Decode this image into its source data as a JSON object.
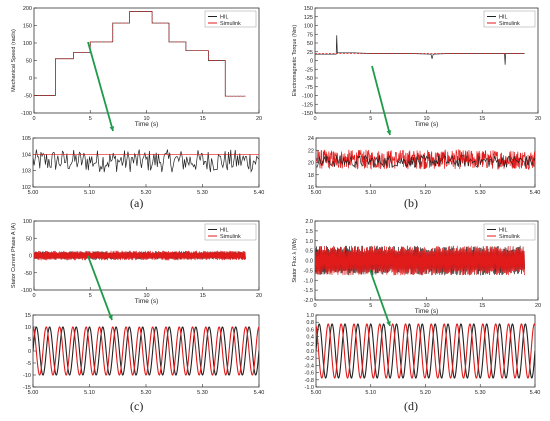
{
  "colors": {
    "hil": "#222222",
    "simulink": "#e11a1a",
    "axis": "#333333",
    "grid": "#dddddd",
    "arrow": "#1f9a4a"
  },
  "chart_data": [
    {
      "id": "a",
      "panel_label": "(a)",
      "type": "line",
      "main": {
        "xlabel": "Time (s)",
        "ylabel": "Mechanical Speed (rad/s)",
        "xlim": [
          0,
          20
        ],
        "ylim": [
          -100,
          200
        ],
        "xticks": [
          0,
          5,
          10,
          15,
          20
        ],
        "yticks": [
          -100,
          -50,
          0,
          50,
          100,
          150,
          200
        ],
        "legend": [
          "HIL",
          "Simulink"
        ],
        "legend_position": "top-right",
        "series": [
          {
            "name": "HIL",
            "x": [
              0,
              1.9,
              1.9,
              3.5,
              3.5,
              5.0,
              5.0,
              7.0,
              7.0,
              8.5,
              8.5,
              10.5,
              10.5,
              12.0,
              12.0,
              13.5,
              13.5,
              15.5,
              15.5,
              17.0,
              17.0,
              18.8
            ],
            "values": [
              -50,
              -50,
              55,
              55,
              73,
              73,
              103,
              103,
              157,
              157,
              190,
              190,
              157,
              157,
              103,
              103,
              78,
              78,
              50,
              50,
              -52,
              -52
            ]
          },
          {
            "name": "Simulink",
            "x": [
              0,
              1.9,
              1.9,
              3.5,
              3.5,
              5.0,
              5.0,
              7.0,
              7.0,
              8.5,
              8.5,
              10.5,
              10.5,
              12.0,
              12.0,
              13.5,
              13.5,
              15.5,
              15.5,
              17.0,
              17.0,
              18.8
            ],
            "values": [
              -50,
              -50,
              55,
              55,
              73,
              73,
              103,
              103,
              157,
              157,
              190,
              190,
              157,
              157,
              103,
              103,
              78,
              78,
              50,
              50,
              -52,
              -52
            ]
          }
        ]
      },
      "zoom": {
        "xlim": [
          5.0,
          5.4
        ],
        "ylim": [
          102,
          105
        ],
        "xticks": [
          5.0,
          5.1,
          5.2,
          5.3,
          5.4
        ],
        "yticks": [
          102,
          103,
          104,
          105
        ],
        "series": [
          {
            "name": "HIL",
            "kind": "noise",
            "center": 103.6,
            "amplitude": 0.7,
            "points": 200
          },
          {
            "name": "Simulink",
            "kind": "flat",
            "value": 104.0
          }
        ]
      }
    },
    {
      "id": "b",
      "panel_label": "(b)",
      "type": "line",
      "main": {
        "xlabel": "Time (s)",
        "ylabel": "Electromagnetic Torque (Nm)",
        "xlim": [
          0,
          20
        ],
        "ylim": [
          -150,
          150
        ],
        "xticks": [
          0,
          5,
          10,
          15,
          20
        ],
        "yticks": [
          -150,
          -125,
          -100,
          -75,
          -50,
          -25,
          0,
          25,
          50,
          75,
          100,
          125,
          150
        ],
        "legend": [
          "HIL",
          "Simulink"
        ],
        "legend_position": "top-right",
        "series": [
          {
            "name": "HIL",
            "x": [
              0,
              1.9,
              1.95,
              2.0,
              3.5,
              5,
              8.5,
              10.4,
              10.5,
              10.6,
              12,
              15.5,
              17.0,
              17.05,
              17.1,
              18.8
            ],
            "values": [
              18,
              18,
              72,
              22,
              22,
              20,
              20,
              18,
              5,
              18,
              20,
              20,
              20,
              -12,
              20,
              20
            ]
          },
          {
            "name": "Simulink",
            "x": [
              0,
              18.8
            ],
            "values": [
              20,
              20
            ]
          }
        ]
      },
      "zoom": {
        "xlim": [
          5.0,
          5.4
        ],
        "ylim": [
          16,
          24
        ],
        "xticks": [
          5.0,
          5.1,
          5.2,
          5.3,
          5.4
        ],
        "yticks": [
          16,
          18,
          20,
          22,
          24
        ],
        "series": [
          {
            "name": "Simulink",
            "kind": "noise",
            "center": 20.5,
            "amplitude": 1.6,
            "points": 600
          },
          {
            "name": "HIL",
            "kind": "noise",
            "center": 20.2,
            "amplitude": 1.0,
            "points": 200
          }
        ]
      }
    },
    {
      "id": "c",
      "panel_label": "(c)",
      "type": "line",
      "main": {
        "xlabel": "Time (s)",
        "ylabel": "Stator Current Phase A (A)",
        "xlim": [
          0,
          20
        ],
        "ylim": [
          -100,
          100
        ],
        "xticks": [
          0,
          5,
          10,
          15,
          20
        ],
        "yticks": [
          -100,
          -50,
          0,
          50,
          100
        ],
        "legend": [
          "HIL",
          "Simulink"
        ],
        "legend_position": "top-right",
        "series": [
          {
            "name": "HIL",
            "kind": "band",
            "x_end": 18.8,
            "amplitude": 12
          },
          {
            "name": "Simulink",
            "kind": "band",
            "x_end": 18.8,
            "amplitude": 14
          }
        ]
      },
      "zoom": {
        "xlim": [
          5.0,
          5.4
        ],
        "ylim": [
          -15,
          15
        ],
        "xticks": [
          5.0,
          5.1,
          5.2,
          5.3,
          5.4
        ],
        "yticks": [
          -15,
          -10,
          -5,
          0,
          5,
          10,
          15
        ],
        "series": [
          {
            "name": "HIL",
            "kind": "sine",
            "amplitude": 10,
            "cycles": 17,
            "phase": 0.0
          },
          {
            "name": "Simulink",
            "kind": "sine",
            "amplitude": 10,
            "cycles": 17,
            "phase": 0.25
          }
        ]
      }
    },
    {
      "id": "d",
      "panel_label": "(d)",
      "type": "line",
      "main": {
        "xlabel": "Time (s)",
        "ylabel": "Stator Flux λ (Wb)",
        "xlim": [
          0,
          20
        ],
        "ylim": [
          -2.0,
          2.0
        ],
        "xticks": [
          0,
          5,
          10,
          15,
          20
        ],
        "yticks": [
          -2.0,
          -1.5,
          -1.0,
          -0.5,
          0.0,
          0.5,
          1.0,
          1.5,
          2.0
        ],
        "legend": [
          "HIL",
          "Simulink"
        ],
        "legend_position": "top-right",
        "series": [
          {
            "name": "HIL",
            "kind": "band",
            "x_end": 18.8,
            "amplitude": 0.75
          },
          {
            "name": "Simulink",
            "kind": "band",
            "x_end": 18.8,
            "amplitude": 0.75
          }
        ]
      },
      "zoom": {
        "xlim": [
          5.0,
          5.4
        ],
        "ylim": [
          -1.0,
          1.0
        ],
        "xticks": [
          5.0,
          5.1,
          5.2,
          5.3,
          5.4
        ],
        "yticks": [
          -1.0,
          -0.8,
          -0.6,
          -0.4,
          -0.2,
          0.0,
          0.2,
          0.4,
          0.6,
          0.8,
          1.0
        ],
        "series": [
          {
            "name": "HIL",
            "kind": "sine",
            "amplitude": 0.75,
            "cycles": 17,
            "phase": 0.0
          },
          {
            "name": "Simulink",
            "kind": "sine",
            "amplitude": 0.75,
            "cycles": 17,
            "phase": 0.3
          }
        ]
      }
    }
  ]
}
